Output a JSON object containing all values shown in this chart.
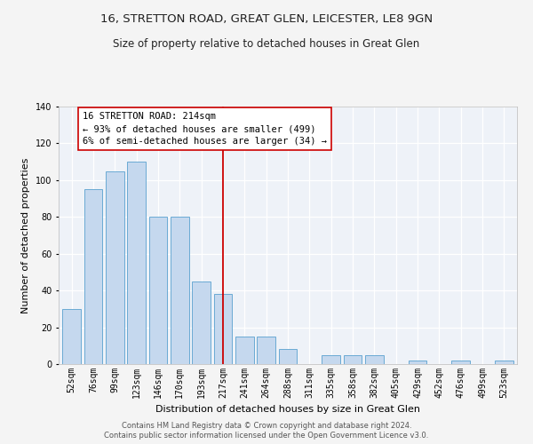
{
  "title1": "16, STRETTON ROAD, GREAT GLEN, LEICESTER, LE8 9GN",
  "title2": "Size of property relative to detached houses in Great Glen",
  "xlabel": "Distribution of detached houses by size in Great Glen",
  "ylabel": "Number of detached properties",
  "categories": [
    "52sqm",
    "76sqm",
    "99sqm",
    "123sqm",
    "146sqm",
    "170sqm",
    "193sqm",
    "217sqm",
    "241sqm",
    "264sqm",
    "288sqm",
    "311sqm",
    "335sqm",
    "358sqm",
    "382sqm",
    "405sqm",
    "429sqm",
    "452sqm",
    "476sqm",
    "499sqm",
    "523sqm"
  ],
  "values": [
    30,
    95,
    105,
    110,
    80,
    80,
    45,
    38,
    15,
    15,
    8,
    0,
    5,
    5,
    5,
    0,
    2,
    0,
    2,
    0,
    2
  ],
  "bar_color": "#c5d8ee",
  "bar_edge_color": "#6aaad4",
  "vline_x_index": 7,
  "vline_color": "#cc0000",
  "annotation_text": "16 STRETTON ROAD: 214sqm\n← 93% of detached houses are smaller (499)\n6% of semi-detached houses are larger (34) →",
  "annotation_box_color": "#ffffff",
  "annotation_box_edge": "#cc0000",
  "ylim": [
    0,
    140
  ],
  "yticks": [
    0,
    20,
    40,
    60,
    80,
    100,
    120,
    140
  ],
  "background_color": "#eef2f8",
  "fig_background": "#f4f4f4",
  "grid_color": "#ffffff",
  "footer1": "Contains HM Land Registry data © Crown copyright and database right 2024.",
  "footer2": "Contains public sector information licensed under the Open Government Licence v3.0.",
  "title1_fontsize": 9.5,
  "title2_fontsize": 8.5,
  "xlabel_fontsize": 8,
  "ylabel_fontsize": 8,
  "tick_fontsize": 7,
  "annotation_fontsize": 7.5,
  "footer_fontsize": 6
}
